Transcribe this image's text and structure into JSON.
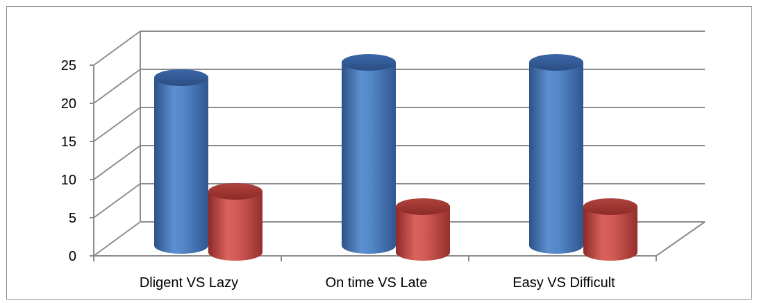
{
  "chart_data": {
    "type": "bar",
    "categories": [
      "Dligent VS Lazy",
      "On time VS Late",
      "Easy VS Difficult"
    ],
    "series": [
      {
        "values": [
          22,
          24,
          24
        ],
        "color": "#4f81bd"
      },
      {
        "values": [
          8,
          6,
          6
        ],
        "color": "#c0504d"
      }
    ],
    "ylim": [
      0,
      25
    ],
    "yticks": [
      "0",
      "5",
      "10",
      "15",
      "20",
      "25"
    ],
    "grid": true,
    "style": "3d-cylinder",
    "legend": "none"
  }
}
